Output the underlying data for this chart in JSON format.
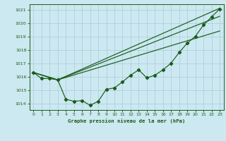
{
  "title": "Graphe pression niveau de la mer (hPa)",
  "bg_color": "#cce8f0",
  "grid_color": "#aaccdd",
  "line_color": "#1a5c1a",
  "xlim": [
    -0.5,
    23.5
  ],
  "ylim": [
    1013.5,
    1021.4
  ],
  "yticks": [
    1014,
    1015,
    1016,
    1017,
    1018,
    1019,
    1020,
    1021
  ],
  "xticks": [
    0,
    1,
    2,
    3,
    4,
    5,
    6,
    7,
    8,
    9,
    10,
    11,
    12,
    13,
    14,
    15,
    16,
    17,
    18,
    19,
    20,
    21,
    22,
    23
  ],
  "line_main": {
    "x": [
      0,
      1,
      2,
      3,
      4,
      5,
      6,
      7,
      8,
      9,
      10,
      11,
      12,
      13,
      14,
      15,
      16,
      17,
      18,
      19,
      20,
      21,
      22,
      23
    ],
    "y": [
      1016.3,
      1015.85,
      1015.85,
      1015.75,
      1014.3,
      1014.15,
      1014.2,
      1013.85,
      1014.15,
      1015.05,
      1015.15,
      1015.6,
      1016.1,
      1016.5,
      1015.9,
      1016.1,
      1016.5,
      1017.0,
      1017.8,
      1018.5,
      1019.0,
      1019.85,
      1020.45,
      1021.05
    ]
  },
  "line_upper": {
    "x": [
      0,
      3,
      23
    ],
    "y": [
      1016.3,
      1015.75,
      1021.1
    ]
  },
  "line_mid1": {
    "x": [
      0,
      3,
      23
    ],
    "y": [
      1016.3,
      1015.75,
      1020.5
    ]
  },
  "line_mid2": {
    "x": [
      0,
      3,
      23
    ],
    "y": [
      1016.3,
      1015.75,
      1019.4
    ]
  }
}
